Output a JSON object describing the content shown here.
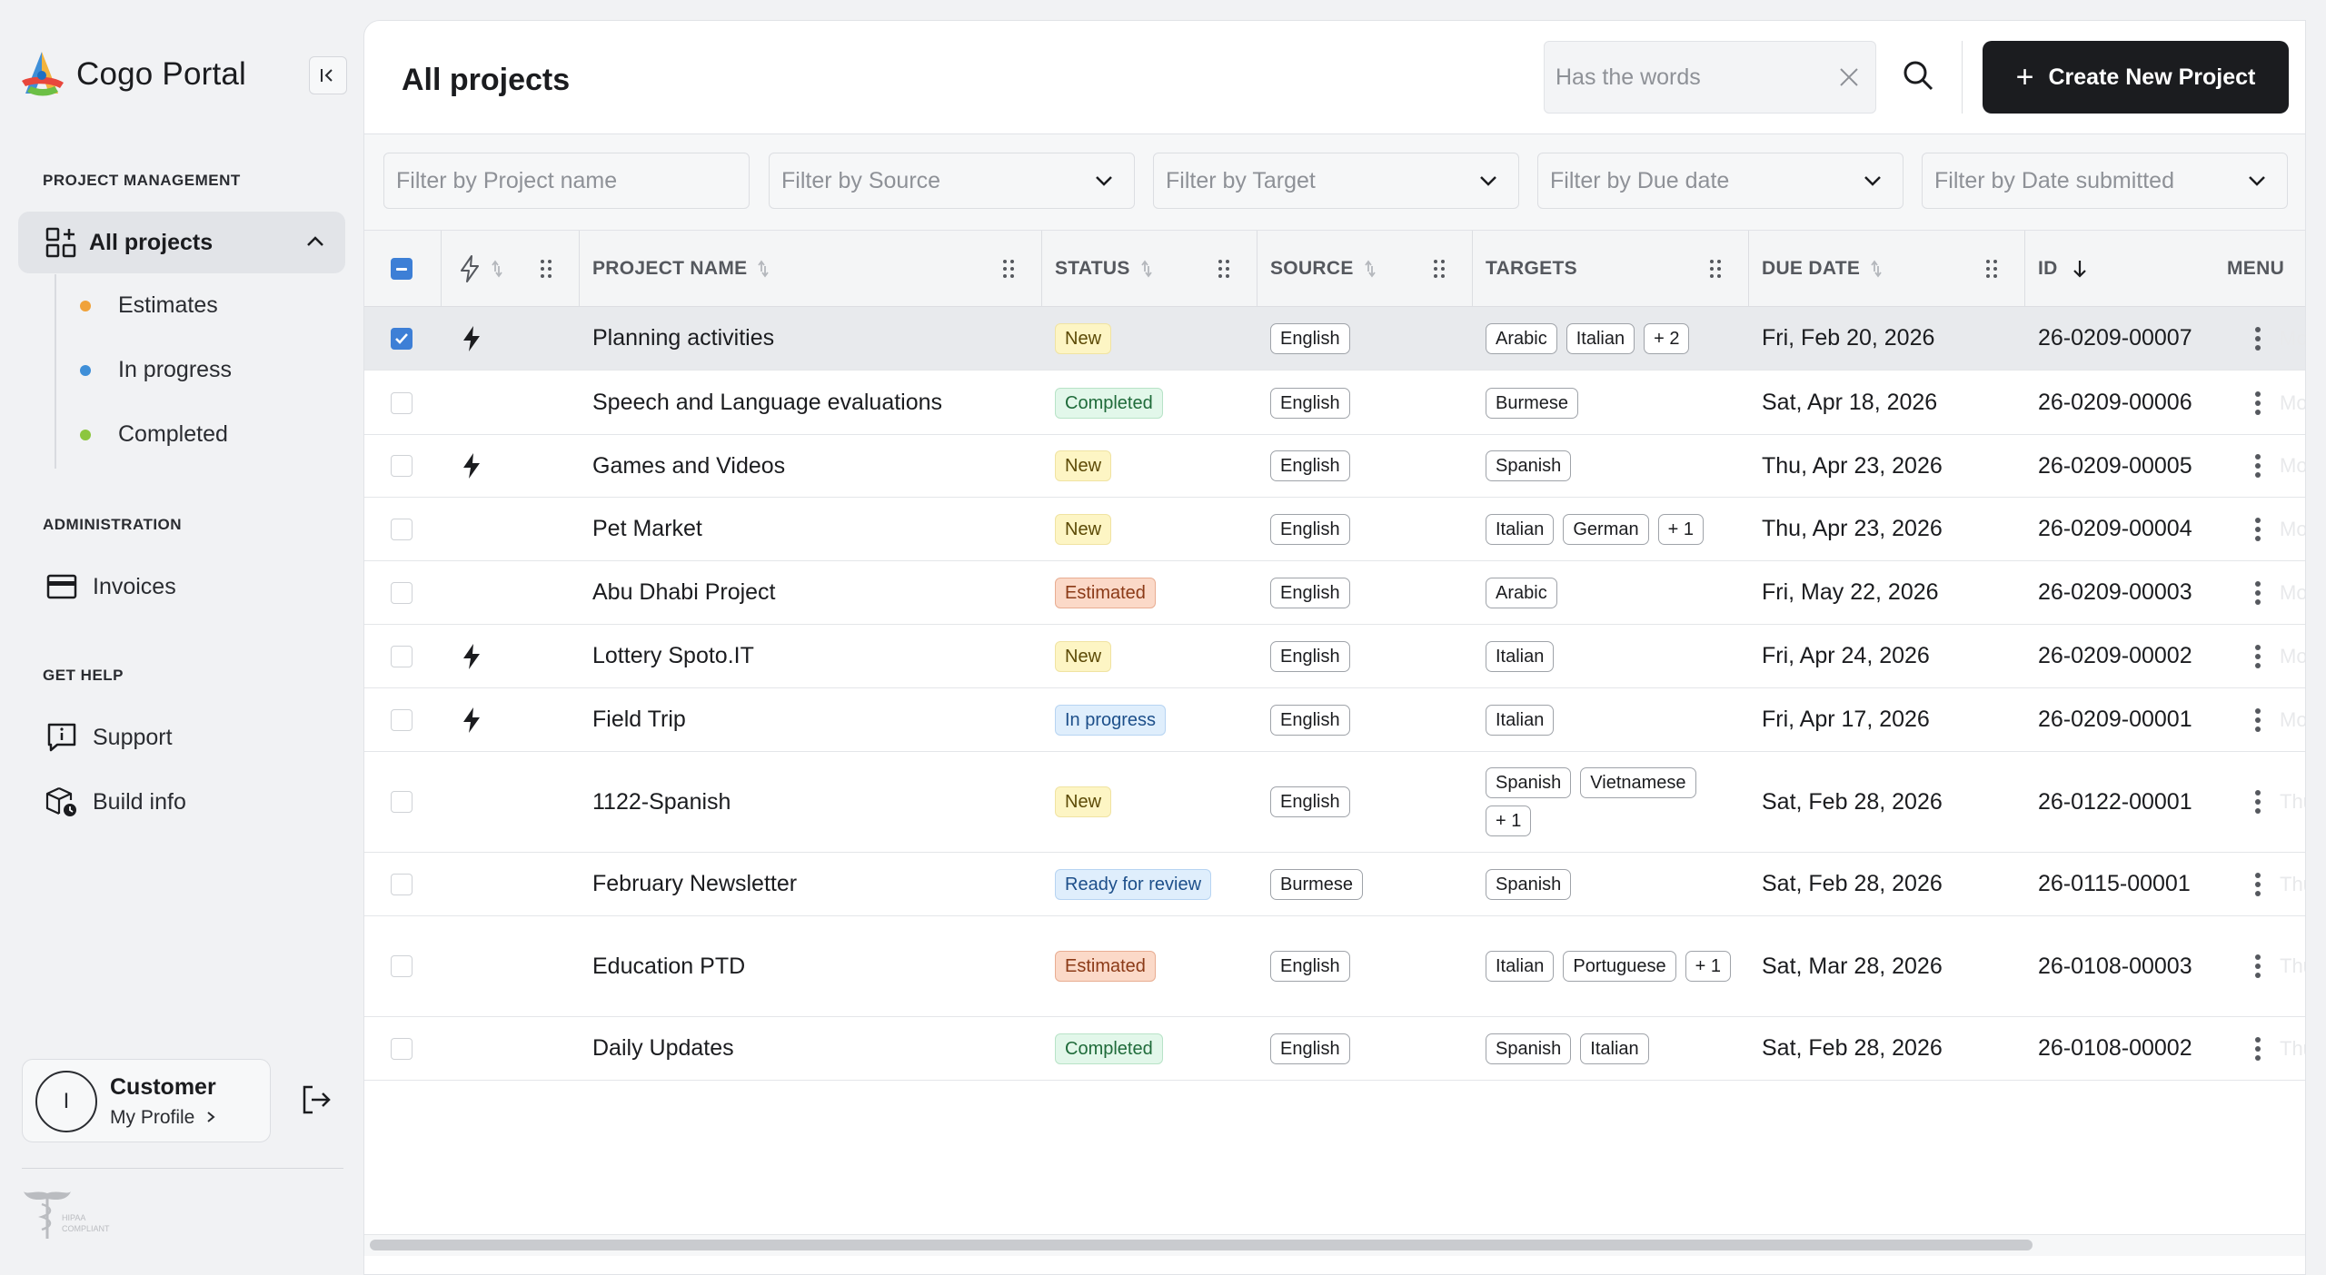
{
  "app": {
    "name": "Cogo Portal"
  },
  "sidebar": {
    "sections": {
      "project_management": "PROJECT MANAGEMENT",
      "administration": "ADMINISTRATION",
      "get_help": "GET HELP"
    },
    "active_item": "All projects",
    "sub_items": [
      {
        "label": "Estimates",
        "color": "#f0a23a"
      },
      {
        "label": "In progress",
        "color": "#3f8fd8"
      },
      {
        "label": "Completed",
        "color": "#8cc63e"
      }
    ],
    "admin_items": [
      {
        "label": "Invoices"
      }
    ],
    "help_items": [
      {
        "label": "Support"
      },
      {
        "label": "Build info"
      }
    ],
    "profile": {
      "initial": "I",
      "name": "Customer",
      "link": "My Profile"
    },
    "hipaa": "HIPAA COMPLIANT"
  },
  "header": {
    "title": "All projects",
    "search_placeholder": "Has the words",
    "create_label": "Create New Project"
  },
  "filters": [
    {
      "placeholder": "Filter by Project name"
    },
    {
      "placeholder": "Filter by Source"
    },
    {
      "placeholder": "Filter by Target"
    },
    {
      "placeholder": "Filter by Due date"
    },
    {
      "placeholder": "Filter by Date submitted"
    }
  ],
  "table": {
    "columns": {
      "name": "PROJECT NAME",
      "status": "STATUS",
      "source": "SOURCE",
      "targets": "TARGETS",
      "due": "DUE DATE",
      "id": "ID",
      "menu": "MENU"
    },
    "rows": [
      {
        "name": "Planning activities",
        "status": "New",
        "status_class": "b-new",
        "source": "English",
        "targets": [
          "Arabic",
          "Italian",
          "+ 2"
        ],
        "due": "Fri, Feb 20, 2026",
        "id": "26-0209-00007",
        "urgent": true,
        "selected": true,
        "ghost": "Mon,"
      },
      {
        "name": "Speech and Language evaluations",
        "status": "Completed",
        "status_class": "b-completed",
        "source": "English",
        "targets": [
          "Burmese"
        ],
        "due": "Sat, Apr 18, 2026",
        "id": "26-0209-00006",
        "urgent": false,
        "selected": false,
        "ghost": "Mon,"
      },
      {
        "name": "Games and Videos",
        "status": "New",
        "status_class": "b-new",
        "source": "English",
        "targets": [
          "Spanish"
        ],
        "due": "Thu, Apr 23, 2026",
        "id": "26-0209-00005",
        "urgent": true,
        "selected": false,
        "ghost": "Mon,"
      },
      {
        "name": "Pet Market",
        "status": "New",
        "status_class": "b-new",
        "source": "English",
        "targets": [
          "Italian",
          "German",
          "+ 1"
        ],
        "due": "Thu, Apr 23, 2026",
        "id": "26-0209-00004",
        "urgent": false,
        "selected": false,
        "ghost": "Mon,"
      },
      {
        "name": "Abu Dhabi Project",
        "status": "Estimated",
        "status_class": "b-estimated",
        "source": "English",
        "targets": [
          "Arabic"
        ],
        "due": "Fri, May 22, 2026",
        "id": "26-0209-00003",
        "urgent": false,
        "selected": false,
        "ghost": "Mon,"
      },
      {
        "name": "Lottery Spoto.IT",
        "status": "New",
        "status_class": "b-new",
        "source": "English",
        "targets": [
          "Italian"
        ],
        "due": "Fri, Apr 24, 2026",
        "id": "26-0209-00002",
        "urgent": true,
        "selected": false,
        "ghost": "Mon,"
      },
      {
        "name": "Field Trip",
        "status": "In progress",
        "status_class": "b-progress",
        "source": "English",
        "targets": [
          "Italian"
        ],
        "due": "Fri, Apr 17, 2026",
        "id": "26-0209-00001",
        "urgent": true,
        "selected": false,
        "ghost": "Mon,"
      },
      {
        "name": "1122-Spanish",
        "status": "New",
        "status_class": "b-new",
        "source": "English",
        "targets": [
          "Spanish",
          "Vietnamese",
          "+ 1"
        ],
        "due": "Sat, Feb 28, 2026",
        "id": "26-0122-00001",
        "urgent": false,
        "selected": false,
        "ghost": "Thu,"
      },
      {
        "name": "February Newsletter",
        "status": "Ready for review",
        "status_class": "b-review",
        "source": "Burmese",
        "targets": [
          "Spanish"
        ],
        "due": "Sat, Feb 28, 2026",
        "id": "26-0115-00001",
        "urgent": false,
        "selected": false,
        "ghost": "Thu,"
      },
      {
        "name": "Education PTD",
        "status": "Estimated",
        "status_class": "b-estimated",
        "source": "English",
        "targets": [
          "Italian",
          "Portuguese",
          "+ 1"
        ],
        "due": "Sat, Mar 28, 2026",
        "id": "26-0108-00003",
        "urgent": false,
        "selected": false,
        "ghost": "Thu,"
      },
      {
        "name": "Daily Updates",
        "status": "Completed",
        "status_class": "b-completed",
        "source": "English",
        "targets": [
          "Spanish",
          "Italian"
        ],
        "due": "Sat, Feb 28, 2026",
        "id": "26-0108-00002",
        "urgent": false,
        "selected": false,
        "ghost": "Thu,"
      }
    ]
  }
}
